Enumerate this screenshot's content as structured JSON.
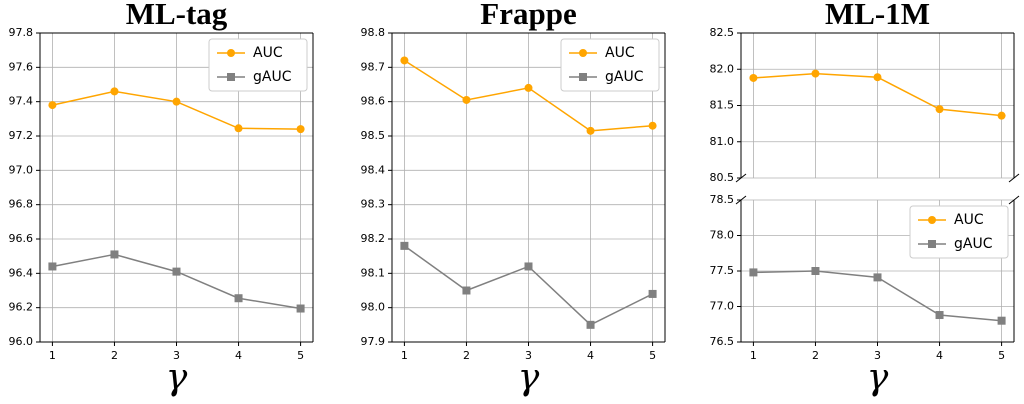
{
  "chart_data": [
    {
      "type": "line",
      "title": "ML-tag",
      "xlabel": "γ",
      "x": [
        1,
        2,
        3,
        4,
        5
      ],
      "xlim": [
        0.8,
        5.2
      ],
      "xticks": [
        1,
        2,
        3,
        4,
        5
      ],
      "ylim": [
        96.0,
        97.8
      ],
      "yticks": [
        {
          "value": 96,
          "label": "96.0"
        },
        96.2,
        96.4,
        96.6,
        96.8,
        {
          "value": 97,
          "label": "97.0"
        },
        97.2,
        97.4,
        97.6,
        97.8
      ],
      "grid": true,
      "legend": "upper right",
      "series": [
        {
          "name": "AUC",
          "color": "#ffa500",
          "marker": "circle",
          "values": [
            97.38,
            97.46,
            97.4,
            97.245,
            97.24
          ]
        },
        {
          "name": "gAUC",
          "color": "#808080",
          "marker": "square",
          "values": [
            96.44,
            96.51,
            96.41,
            96.255,
            96.195
          ]
        }
      ]
    },
    {
      "type": "line",
      "title": "Frappe",
      "xlabel": "γ",
      "x": [
        1,
        2,
        3,
        4,
        5
      ],
      "xlim": [
        0.8,
        5.2
      ],
      "xticks": [
        1,
        2,
        3,
        4,
        5
      ],
      "ylim": [
        97.9,
        98.8
      ],
      "yticks": [
        97.9,
        {
          "value": 98,
          "label": "98.0"
        },
        98.1,
        98.2,
        98.3,
        98.4,
        98.5,
        98.6,
        98.7,
        98.8
      ],
      "grid": true,
      "legend": "upper right",
      "series": [
        {
          "name": "AUC",
          "color": "#ffa500",
          "marker": "circle",
          "values": [
            98.72,
            98.605,
            98.64,
            98.515,
            98.53
          ]
        },
        {
          "name": "gAUC",
          "color": "#808080",
          "marker": "square",
          "values": [
            98.18,
            98.05,
            98.12,
            97.95,
            98.04
          ]
        }
      ]
    },
    {
      "type": "line",
      "title": "ML-1M",
      "xlabel": "γ",
      "x": [
        1,
        2,
        3,
        4,
        5
      ],
      "xlim": [
        0.8,
        5.2
      ],
      "xticks": [
        1,
        2,
        3,
        4,
        5
      ],
      "broken_axis": true,
      "ylim_upper": [
        80.5,
        82.5
      ],
      "yticks_upper": [
        80.5,
        {
          "value": 81,
          "label": "81.0"
        },
        81.5,
        {
          "value": 82,
          "label": "82.0"
        },
        82.5
      ],
      "ylim": [
        76.5,
        78.5
      ],
      "yticks": [
        76.5,
        {
          "value": 77,
          "label": "77.0"
        },
        77.5,
        {
          "value": 78,
          "label": "78.0"
        },
        78.5
      ],
      "grid": true,
      "legend": "upper right",
      "series": [
        {
          "name": "AUC",
          "color": "#ffa500",
          "marker": "circle",
          "axis": "upper",
          "values": [
            81.88,
            81.94,
            81.89,
            81.45,
            81.36
          ]
        },
        {
          "name": "gAUC",
          "color": "#808080",
          "marker": "square",
          "values": [
            77.48,
            77.5,
            77.41,
            76.88,
            76.8
          ]
        }
      ]
    }
  ]
}
